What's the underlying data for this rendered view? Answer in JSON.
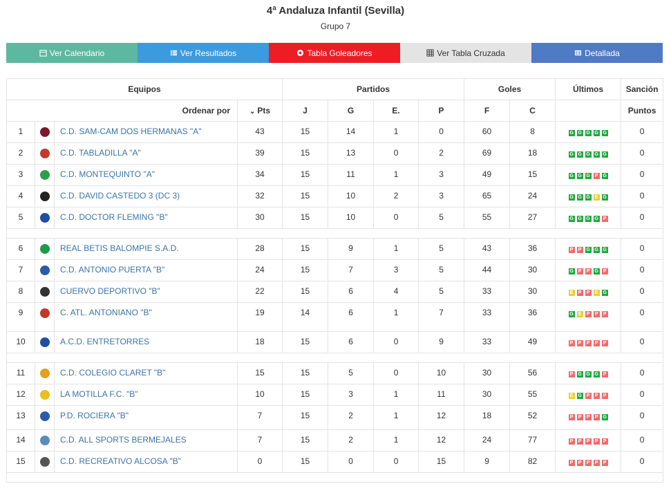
{
  "header": {
    "title": "4ª Andaluza Infantil (Sevilla)",
    "subtitle": "Grupo 7"
  },
  "buttons": [
    {
      "label": "Ver Calendario",
      "icon": "calendar-icon",
      "color": "#5cb8a0"
    },
    {
      "label": "Ver Resultados",
      "icon": "list-icon",
      "color": "#3c9ade"
    },
    {
      "label": "Tabla Goleadores",
      "icon": "soccer-ball-icon",
      "color": "#ee1c25"
    },
    {
      "label": "Ver Tabla Cruzada",
      "icon": "grid-icon",
      "color": "#e4e4e4"
    },
    {
      "label": "Detallada",
      "icon": "table-icon",
      "color": "#4f7ac5"
    }
  ],
  "table_headers": {
    "equipos": "Equipos",
    "partidos": "Partidos",
    "goles": "Goles",
    "ultimos": "Últimos",
    "sancion": "Sanción",
    "ordenar": "Ordenar por",
    "pts": "Pts",
    "j": "J",
    "g": "G",
    "e": "E.",
    "p": "P",
    "f": "F",
    "c": "C",
    "puntos": "Puntos"
  },
  "teams": [
    {
      "pos": "1",
      "name": "C.D. SAM-CAM DOS HERMANAS \"A\"",
      "pts": "43",
      "j": "15",
      "g": "14",
      "e": "1",
      "p": "0",
      "f": "60",
      "c": "8",
      "last": [
        "G",
        "G",
        "G",
        "G",
        "G"
      ],
      "sancion": "0",
      "crest": "#7a1a2a"
    },
    {
      "pos": "2",
      "name": "C.D. TABLADILLA \"A\"",
      "pts": "39",
      "j": "15",
      "g": "13",
      "e": "0",
      "p": "2",
      "f": "69",
      "c": "18",
      "last": [
        "G",
        "G",
        "G",
        "G",
        "G"
      ],
      "sancion": "0",
      "crest": "#c0392b"
    },
    {
      "pos": "3",
      "name": "C.D. MONTEQUINTO \"A\"",
      "pts": "34",
      "j": "15",
      "g": "11",
      "e": "1",
      "p": "3",
      "f": "49",
      "c": "15",
      "last": [
        "G",
        "G",
        "G",
        "P",
        "G"
      ],
      "sancion": "0",
      "crest": "#2e9e4a"
    },
    {
      "pos": "4",
      "name": "C.D. DAVID CASTEDO 3 (DC 3)",
      "pts": "32",
      "j": "15",
      "g": "10",
      "e": "2",
      "p": "3",
      "f": "65",
      "c": "24",
      "last": [
        "G",
        "G",
        "G",
        "E",
        "G"
      ],
      "sancion": "0",
      "crest": "#222222"
    },
    {
      "pos": "5",
      "name": "C.D. DOCTOR FLEMING \"B\"",
      "pts": "30",
      "j": "15",
      "g": "10",
      "e": "0",
      "p": "5",
      "f": "55",
      "c": "27",
      "last": [
        "G",
        "G",
        "G",
        "G",
        "P"
      ],
      "sancion": "0",
      "crest": "#1f4fa0"
    },
    {
      "pos": "6",
      "name": "REAL BETIS BALOMPIE S.A.D.",
      "pts": "28",
      "j": "15",
      "g": "9",
      "e": "1",
      "p": "5",
      "f": "43",
      "c": "36",
      "last": [
        "P",
        "P",
        "G",
        "G",
        "G"
      ],
      "sancion": "0",
      "crest": "#1e9a4b"
    },
    {
      "pos": "7",
      "name": "C.D. ANTONIO PUERTA \"B\"",
      "pts": "24",
      "j": "15",
      "g": "7",
      "e": "3",
      "p": "5",
      "f": "44",
      "c": "30",
      "last": [
        "G",
        "P",
        "P",
        "G",
        "P"
      ],
      "sancion": "0",
      "crest": "#2a5aa8"
    },
    {
      "pos": "8",
      "name": "CUERVO DEPORTIVO \"B\"",
      "pts": "22",
      "j": "15",
      "g": "6",
      "e": "4",
      "p": "5",
      "f": "33",
      "c": "30",
      "last": [
        "E",
        "P",
        "P",
        "E",
        "G"
      ],
      "sancion": "0",
      "crest": "#333333"
    },
    {
      "pos": "9",
      "name": "C. ATL. ANTONIANO \"B\"",
      "pts": "19",
      "j": "14",
      "g": "6",
      "e": "1",
      "p": "7",
      "f": "33",
      "c": "36",
      "last": [
        "G",
        "E",
        "P",
        "P",
        "P"
      ],
      "sancion": "0",
      "crest": "#c0392b"
    },
    {
      "pos": "10",
      "name": "A.C.D. ENTRETORRES",
      "pts": "18",
      "j": "15",
      "g": "6",
      "e": "0",
      "p": "9",
      "f": "33",
      "c": "49",
      "last": [
        "P",
        "P",
        "P",
        "P",
        "P"
      ],
      "sancion": "0",
      "crest": "#1f4fa0"
    },
    {
      "pos": "11",
      "name": "C.D. COLEGIO CLARET \"B\"",
      "pts": "15",
      "j": "15",
      "g": "5",
      "e": "0",
      "p": "10",
      "f": "30",
      "c": "56",
      "last": [
        "P",
        "G",
        "G",
        "G",
        "P"
      ],
      "sancion": "0",
      "crest": "#e0a020"
    },
    {
      "pos": "12",
      "name": "LA MOTILLA F.C. \"B\"",
      "pts": "10",
      "j": "15",
      "g": "3",
      "e": "1",
      "p": "11",
      "f": "30",
      "c": "55",
      "last": [
        "E",
        "G",
        "P",
        "P",
        "P"
      ],
      "sancion": "0",
      "crest": "#e8c020"
    },
    {
      "pos": "13",
      "name": "P.D. ROCIERA \"B\"",
      "pts": "7",
      "j": "15",
      "g": "2",
      "e": "1",
      "p": "12",
      "f": "18",
      "c": "52",
      "last": [
        "P",
        "P",
        "P",
        "P",
        "G"
      ],
      "sancion": "0",
      "crest": "#2a5aa8"
    },
    {
      "pos": "14",
      "name": "C.D. ALL SPORTS BERMEJALES",
      "pts": "7",
      "j": "15",
      "g": "2",
      "e": "1",
      "p": "12",
      "f": "24",
      "c": "77",
      "last": [
        "P",
        "P",
        "P",
        "P",
        "P"
      ],
      "sancion": "0",
      "crest": "#5a8ac0"
    },
    {
      "pos": "15",
      "name": "C.D. RECREATIVO ALCOSA \"B\"",
      "pts": "0",
      "j": "15",
      "g": "0",
      "e": "0",
      "p": "15",
      "f": "9",
      "c": "82",
      "last": [
        "P",
        "P",
        "P",
        "P",
        "P"
      ],
      "sancion": "0",
      "crest": "#555555"
    }
  ]
}
